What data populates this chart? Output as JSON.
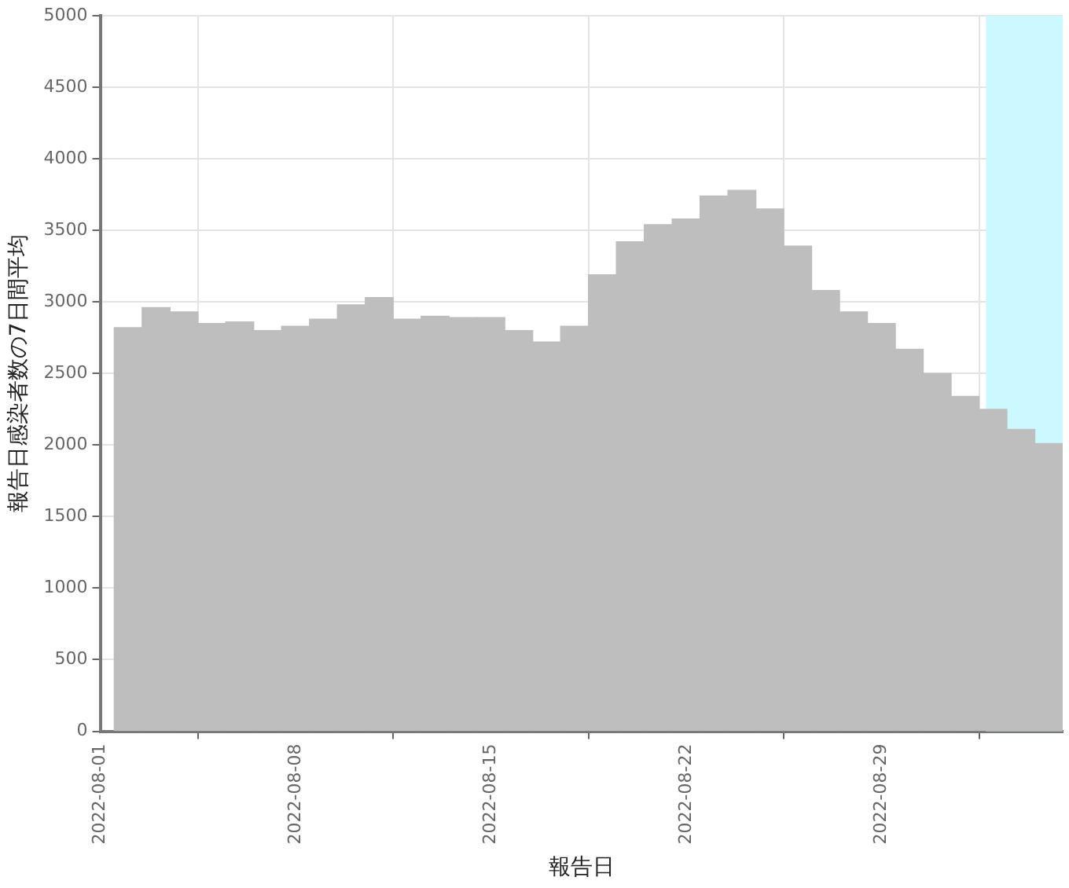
{
  "chart_data": {
    "type": "bar",
    "xlabel": "報告日",
    "ylabel": "報告日感染者数の7日間平均",
    "x": [
      "2022-08-02",
      "2022-08-03",
      "2022-08-04",
      "2022-08-05",
      "2022-08-06",
      "2022-08-07",
      "2022-08-08",
      "2022-08-09",
      "2022-08-10",
      "2022-08-11",
      "2022-08-12",
      "2022-08-13",
      "2022-08-14",
      "2022-08-15",
      "2022-08-16",
      "2022-08-17",
      "2022-08-18",
      "2022-08-19",
      "2022-08-20",
      "2022-08-21",
      "2022-08-22",
      "2022-08-23",
      "2022-08-24",
      "2022-08-25",
      "2022-08-26",
      "2022-08-27",
      "2022-08-28",
      "2022-08-29",
      "2022-08-30",
      "2022-08-31",
      "2022-09-01",
      "2022-09-02",
      "2022-09-03",
      "2022-09-04"
    ],
    "values": [
      2820,
      2960,
      2930,
      2850,
      2860,
      2800,
      2830,
      2880,
      2980,
      3030,
      2880,
      2900,
      2890,
      2890,
      2800,
      2720,
      2830,
      3190,
      3420,
      3540,
      3580,
      3740,
      3780,
      3650,
      3390,
      3080,
      2930,
      2850,
      2670,
      2500,
      2340,
      2250,
      2110,
      2010
    ],
    "color": "#bebebe",
    "xlim": [
      "2022-08-01",
      "2022-09-04T12:00"
    ],
    "xticks": [
      "2022-08-01",
      "2022-08-08",
      "2022-08-15",
      "2022-08-22",
      "2022-08-29"
    ],
    "ylim": [
      0,
      5000
    ],
    "yticks": [
      0,
      500,
      1000,
      1500,
      2000,
      2500,
      3000,
      3500,
      4000,
      4500,
      5000
    ],
    "bands": [
      {
        "axis": "x",
        "from": "2022-09-01T18:00",
        "to": "2022-09-04T12:00",
        "color": "#ccf8ff"
      }
    ],
    "grid": true,
    "legend": false
  }
}
